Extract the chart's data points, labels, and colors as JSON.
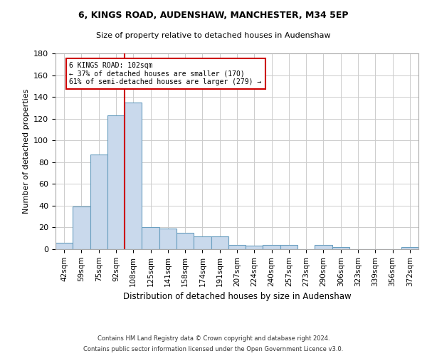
{
  "title1": "6, KINGS ROAD, AUDENSHAW, MANCHESTER, M34 5EP",
  "title2": "Size of property relative to detached houses in Audenshaw",
  "xlabel": "Distribution of detached houses by size in Audenshaw",
  "ylabel": "Number of detached properties",
  "categories": [
    "42sqm",
    "59sqm",
    "75sqm",
    "92sqm",
    "108sqm",
    "125sqm",
    "141sqm",
    "158sqm",
    "174sqm",
    "191sqm",
    "207sqm",
    "224sqm",
    "240sqm",
    "257sqm",
    "273sqm",
    "290sqm",
    "306sqm",
    "323sqm",
    "339sqm",
    "356sqm",
    "372sqm"
  ],
  "values": [
    6,
    39,
    87,
    123,
    135,
    20,
    19,
    15,
    12,
    12,
    4,
    3,
    4,
    4,
    0,
    4,
    2,
    0,
    0,
    0,
    2
  ],
  "bar_color": "#c9d9ec",
  "bar_edge_color": "#6a9fc0",
  "reference_line_label": "6 KINGS ROAD: 102sqm",
  "pct_smaller": "37% of detached houses are smaller (170)",
  "pct_larger": "61% of semi-detached houses are larger (279)",
  "ylim": [
    0,
    180
  ],
  "yticks": [
    0,
    20,
    40,
    60,
    80,
    100,
    120,
    140,
    160,
    180
  ],
  "annotation_box_color": "#ffffff",
  "annotation_box_edge_color": "#cc0000",
  "vline_color": "#cc0000",
  "grid_color": "#cccccc",
  "footer1": "Contains HM Land Registry data © Crown copyright and database right 2024.",
  "footer2": "Contains public sector information licensed under the Open Government Licence v3.0."
}
